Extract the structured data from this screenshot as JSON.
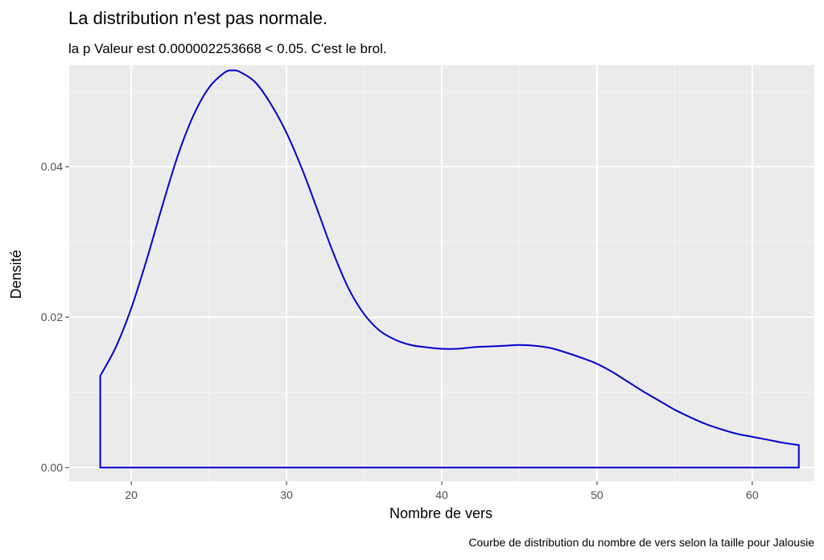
{
  "chart_data": {
    "type": "line",
    "title": "La distribution n'est pas normale.",
    "subtitle": "la p Valeur est  0.000002253668  < 0.05. C'est le brol.",
    "xlabel": "Nombre de vers",
    "ylabel": "Densité",
    "caption": "Courbe de distribution du nombre de vers selon la taille pour  Jalousie",
    "xlim": [
      16,
      64
    ],
    "ylim": [
      -0.0018,
      0.0535
    ],
    "x_ticks": [
      20,
      30,
      40,
      50,
      60
    ],
    "x_tick_labels": [
      "20",
      "30",
      "40",
      "50",
      "60"
    ],
    "y_ticks": [
      0.0,
      0.02,
      0.04
    ],
    "y_tick_labels": [
      "0.00",
      "0.02",
      "0.04"
    ],
    "grid": true,
    "background": "#ebebeb",
    "line_color": "#0000cd",
    "series": [
      {
        "x": [
          18,
          19,
          20,
          21,
          22,
          23,
          24,
          25,
          26,
          26.5,
          27,
          28,
          29,
          30,
          31,
          32,
          33,
          34,
          35,
          36,
          37,
          38,
          39,
          40,
          41,
          42,
          43,
          44,
          45,
          46,
          47,
          48,
          49,
          50,
          51,
          52,
          53,
          54,
          55,
          56,
          57,
          58,
          59,
          60,
          61,
          62,
          63
        ],
        "y": [
          0.0122,
          0.016,
          0.0212,
          0.0277,
          0.0348,
          0.0415,
          0.0468,
          0.0505,
          0.0525,
          0.0528,
          0.0526,
          0.0512,
          0.0483,
          0.0445,
          0.0397,
          0.0342,
          0.0286,
          0.0238,
          0.0204,
          0.0182,
          0.017,
          0.0163,
          0.016,
          0.0158,
          0.0158,
          0.016,
          0.0161,
          0.0162,
          0.0163,
          0.0162,
          0.0159,
          0.0153,
          0.0146,
          0.0138,
          0.0127,
          0.0114,
          0.0101,
          0.0089,
          0.0077,
          0.0067,
          0.0058,
          0.0051,
          0.0045,
          0.0041,
          0.0037,
          0.0033,
          0.003
        ]
      }
    ]
  }
}
